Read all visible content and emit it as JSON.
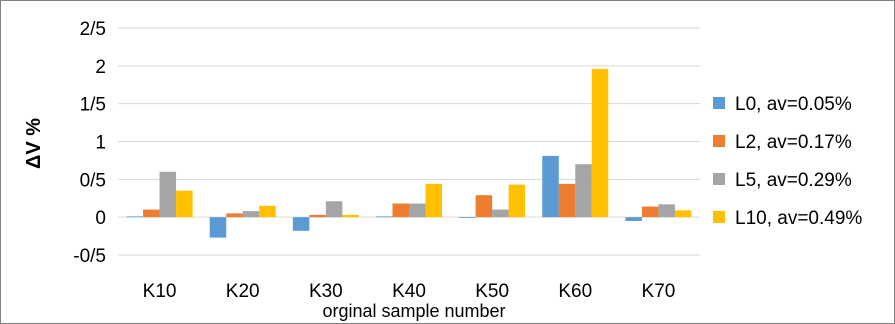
{
  "chart_data": {
    "type": "bar",
    "title": "",
    "xlabel": "orginal sample number",
    "ylabel": "ΔV %",
    "ylim": [
      -0.5,
      2.5
    ],
    "yticks": [
      -0.5,
      0,
      0.5,
      1,
      1.5,
      2,
      2.5
    ],
    "ytick_labels": [
      "-0/5",
      "0",
      "0/5",
      "1",
      "1/5",
      "2",
      "2/5"
    ],
    "grid": true,
    "legend_position": "right",
    "categories": [
      "K10",
      "K20",
      "K30",
      "K40",
      "K50",
      "K60",
      "K70"
    ],
    "series": [
      {
        "name": "L0, av=0.05%",
        "color": "#5b9bd5",
        "values": [
          0.01,
          -0.27,
          -0.18,
          0.01,
          -0.01,
          0.81,
          -0.05
        ]
      },
      {
        "name": "L2, av=0.17%",
        "color": "#ed7d31",
        "values": [
          0.1,
          0.05,
          0.03,
          0.18,
          0.29,
          0.44,
          0.14
        ]
      },
      {
        "name": "L5, av=0.29%",
        "color": "#a5a5a5",
        "values": [
          0.6,
          0.08,
          0.21,
          0.18,
          0.1,
          0.7,
          0.17
        ]
      },
      {
        "name": "L10, av=0.49%",
        "color": "#ffc000",
        "values": [
          0.35,
          0.15,
          0.03,
          0.44,
          0.43,
          1.96,
          0.09
        ]
      }
    ]
  }
}
